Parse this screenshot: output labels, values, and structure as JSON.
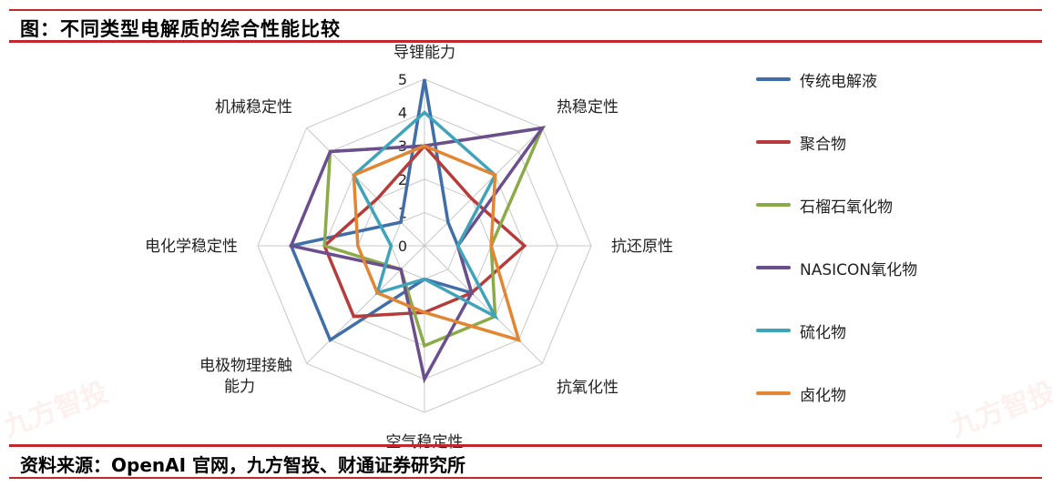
{
  "header": {
    "title": "图：不同类型电解质的综合性能比较"
  },
  "footer": {
    "source": "资料来源：OpenAI 官网，九方智投、财通证券研究所"
  },
  "watermark": {
    "text": "九方智投"
  },
  "chart_data": {
    "type": "radar",
    "title": "",
    "axes": [
      "导锂能力",
      "热稳定性",
      "抗还原性",
      "抗氧化性",
      "空气稳定性",
      "电极物理接触能力",
      "电化学稳定性",
      "机械稳定性"
    ],
    "ticks": [
      0,
      1,
      2,
      3,
      4,
      5
    ],
    "range": [
      0,
      5
    ],
    "grid": true,
    "legend_position": "right",
    "series": [
      {
        "name": "传统电解液",
        "color": "#3f6ea8",
        "values": [
          5,
          1,
          1,
          2,
          1,
          4,
          4,
          1
        ]
      },
      {
        "name": "聚合物",
        "color": "#b53c3a",
        "values": [
          3,
          2,
          3,
          2,
          2,
          3,
          3,
          2
        ]
      },
      {
        "name": "石榴石氧化物",
        "color": "#8bab48",
        "values": [
          3,
          5,
          2,
          3,
          3,
          1,
          3,
          4
        ]
      },
      {
        "name": "NASICON氧化物",
        "color": "#6b4e8e",
        "values": [
          3,
          5,
          1,
          2,
          4,
          1,
          4,
          4
        ]
      },
      {
        "name": "硫化物",
        "color": "#3fa3ba",
        "values": [
          4,
          3,
          1,
          3,
          1,
          2,
          1,
          3
        ]
      },
      {
        "name": "卤化物",
        "color": "#e28634",
        "values": [
          3,
          3,
          2,
          4,
          2,
          2,
          2,
          3
        ]
      }
    ]
  }
}
